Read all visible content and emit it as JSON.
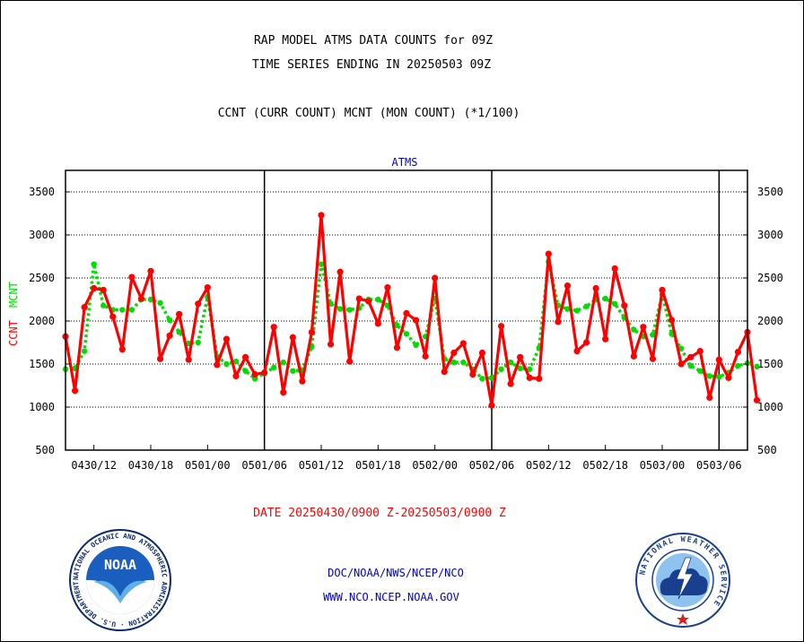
{
  "header": {
    "title_line1": "RAP MODEL ATMS DATA COUNTS for 09Z",
    "title_line2": "TIME SERIES ENDING IN 20250503 09Z",
    "legend_line": "CCNT (CURR COUNT) MCNT (MON COUNT) (*1/100)"
  },
  "footer": {
    "date_range": "DATE 20250430/0900 Z-20250503/0900 Z",
    "org_path": "DOC/NOAA/NWS/NCEP/NCO",
    "website": "WWW.NCO.NCEP.NOAA.GOV"
  },
  "logos": {
    "noaa_text": "NOAA",
    "noaa_ring": "NATIONAL OCEANIC AND ATMOSPHERIC ADMINISTRATION · U.S. DEPARTMENT OF COMMERCE",
    "nws_ring": "NATIONAL WEATHER SERVICE"
  },
  "colors": {
    "ccnt": "#ff0000",
    "mcnt": "#00dd00",
    "subtitle": "#0000cc",
    "date_label": "#ff0000"
  },
  "chart_data": {
    "type": "line",
    "subtitle": "ATMS",
    "ylabel_left_ccnt": "CCNT",
    "ylabel_left_mcnt": "MCNT",
    "ylim": [
      500,
      3750
    ],
    "yticks": [
      500,
      1000,
      1500,
      2000,
      2500,
      3000,
      3500
    ],
    "grid": true,
    "xlim": [
      0,
      72
    ],
    "xticks": [
      {
        "x": 3,
        "label": "0430/12"
      },
      {
        "x": 9,
        "label": "0430/18"
      },
      {
        "x": 15,
        "label": "0501/00"
      },
      {
        "x": 21,
        "label": "0501/06"
      },
      {
        "x": 27,
        "label": "0501/12"
      },
      {
        "x": 33,
        "label": "0501/18"
      },
      {
        "x": 39,
        "label": "0502/00"
      },
      {
        "x": 45,
        "label": "0502/06"
      },
      {
        "x": 51,
        "label": "0502/12"
      },
      {
        "x": 57,
        "label": "0502/18"
      },
      {
        "x": 63,
        "label": "0503/00"
      },
      {
        "x": 69,
        "label": "0503/06"
      }
    ],
    "day_boundaries": [
      21,
      45,
      69
    ],
    "series": [
      {
        "name": "CCNT",
        "values": [
          1820,
          1190,
          2160,
          2380,
          2360,
          2050,
          1670,
          2510,
          2260,
          2580,
          1560,
          1830,
          2080,
          1550,
          2200,
          2390,
          1490,
          1790,
          1360,
          1580,
          1380,
          1400,
          1930,
          1170,
          1810,
          1300,
          1870,
          3230,
          1730,
          2570,
          1530,
          2260,
          2230,
          1970,
          2390,
          1690,
          2090,
          2010,
          1590,
          2500,
          1410,
          1630,
          1740,
          1380,
          1630,
          1020,
          1940,
          1270,
          1580,
          1340,
          1330,
          2780,
          1990,
          2410,
          1650,
          1750,
          2380,
          1790,
          2610,
          2180,
          1590,
          1930,
          1560,
          2360,
          2010,
          1500,
          1580,
          1650,
          1110,
          1550,
          1340,
          1640,
          1870,
          1080
        ],
        "markers": true
      },
      {
        "name": "MCNT",
        "values": [
          1440,
          1450,
          1650,
          2660,
          2180,
          2130,
          2130,
          2130,
          2250,
          2250,
          2210,
          2010,
          1870,
          1740,
          1750,
          2280,
          1590,
          1500,
          1530,
          1420,
          1330,
          1390,
          1460,
          1520,
          1420,
          1430,
          1700,
          2660,
          2200,
          2140,
          2130,
          2150,
          2250,
          2250,
          2180,
          1950,
          1850,
          1720,
          1820,
          2260,
          1560,
          1520,
          1520,
          1440,
          1330,
          1340,
          1440,
          1520,
          1450,
          1440,
          1690,
          2690,
          2180,
          2140,
          2120,
          2170,
          2250,
          2260,
          2200,
          2040,
          1900,
          1820,
          1840,
          2310,
          1850,
          1680,
          1480,
          1420,
          1360,
          1350,
          1400,
          1480,
          1510,
          1470
        ],
        "markers": true
      }
    ]
  }
}
